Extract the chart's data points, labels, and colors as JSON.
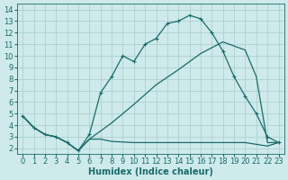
{
  "bg_color": "#ceeaea",
  "grid_color": "#aed0d0",
  "line_color": "#1a6b6b",
  "marker_color": "#1a6b6b",
  "curve1_x": [
    0,
    1,
    2,
    3,
    4,
    5,
    6,
    7,
    8,
    9,
    10,
    11,
    12,
    13,
    14,
    15,
    16,
    17,
    18,
    19,
    20,
    21,
    22,
    23
  ],
  "curve1_y": [
    4.8,
    3.8,
    3.2,
    3.0,
    2.5,
    1.8,
    3.2,
    6.8,
    8.2,
    10.0,
    9.5,
    11.0,
    11.5,
    12.8,
    13.0,
    13.5,
    13.2,
    12.0,
    10.4,
    8.2,
    6.5,
    5.0,
    3.0,
    2.5
  ],
  "curve2_x": [
    0,
    1,
    2,
    3,
    4,
    5,
    6,
    8,
    10,
    12,
    14,
    16,
    18,
    20,
    21,
    22,
    23
  ],
  "curve2_y": [
    4.8,
    3.8,
    3.2,
    3.0,
    2.5,
    1.8,
    2.8,
    4.2,
    5.8,
    7.5,
    8.8,
    10.2,
    11.2,
    10.5,
    8.2,
    2.5,
    2.5
  ],
  "curve3_x": [
    0,
    1,
    2,
    3,
    4,
    5,
    6,
    7,
    8,
    10,
    14,
    18,
    20,
    22,
    23
  ],
  "curve3_y": [
    4.8,
    3.8,
    3.2,
    3.0,
    2.5,
    1.8,
    2.8,
    2.8,
    2.6,
    2.5,
    2.5,
    2.5,
    2.5,
    2.2,
    2.5
  ],
  "xlim": [
    -0.5,
    23.5
  ],
  "ylim": [
    1.5,
    14.5
  ],
  "xticks": [
    0,
    1,
    2,
    3,
    4,
    5,
    6,
    7,
    8,
    9,
    10,
    11,
    12,
    13,
    14,
    15,
    16,
    17,
    18,
    19,
    20,
    21,
    22,
    23
  ],
  "yticks": [
    2,
    3,
    4,
    5,
    6,
    7,
    8,
    9,
    10,
    11,
    12,
    13,
    14
  ],
  "xlabel": "Humidex (Indice chaleur)",
  "xlabel_fontsize": 7,
  "tick_fontsize": 6
}
